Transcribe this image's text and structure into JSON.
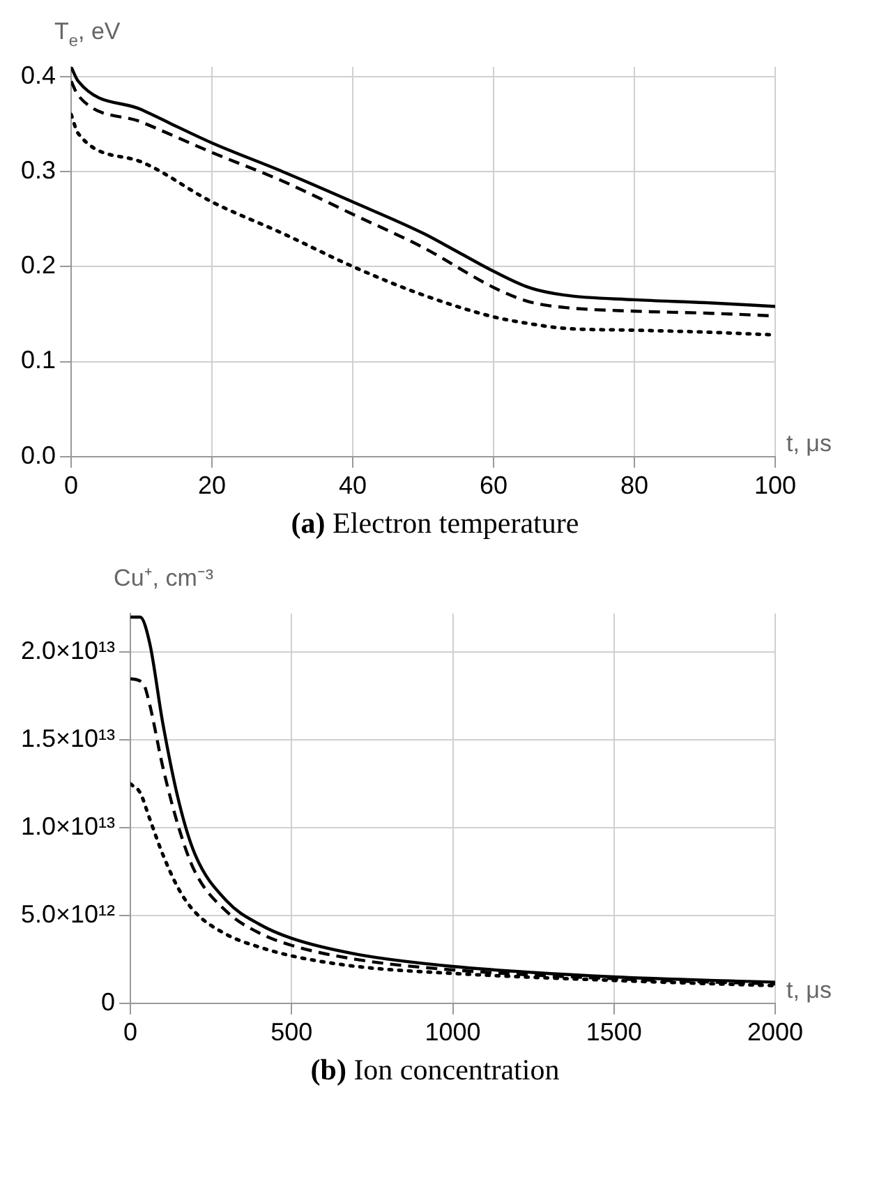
{
  "chart_data": [
    {
      "type": "line",
      "title": "(a) Electron temperature",
      "xlabel": "t, μs",
      "ylabel": "T$_{e}$, eV",
      "xlim": [
        0,
        100
      ],
      "xticks": [
        0,
        20,
        40,
        60,
        80,
        100
      ],
      "ylim": [
        0,
        0.41
      ],
      "yticks": [
        {
          "value": 0,
          "label": "0.0"
        },
        0.1,
        0.2,
        0.3,
        0.4
      ],
      "grid": true,
      "legend": false,
      "marker": "none",
      "series": [
        {
          "color": "#000000",
          "line_style": "solid",
          "x": [
            0,
            1,
            10,
            20,
            30,
            40,
            50,
            55,
            60,
            65,
            70,
            80,
            90,
            100
          ],
          "values": [
            0.41,
            0.395,
            0.365,
            0.33,
            0.3,
            0.268,
            0.235,
            0.215,
            0.195,
            0.178,
            0.17,
            0.165,
            0.162,
            0.158
          ]
        },
        {
          "color": "#000000",
          "line_style": "dashed",
          "x": [
            0,
            1,
            10,
            20,
            30,
            40,
            50,
            60,
            65,
            70,
            80,
            90,
            100
          ],
          "values": [
            0.395,
            0.38,
            0.352,
            0.32,
            0.29,
            0.255,
            0.22,
            0.178,
            0.163,
            0.157,
            0.153,
            0.151,
            0.148
          ]
        },
        {
          "color": "#000000",
          "line_style": "dotted",
          "x": [
            0,
            1,
            10,
            20,
            30,
            40,
            50,
            60,
            65,
            70,
            80,
            90,
            100
          ],
          "values": [
            0.36,
            0.34,
            0.31,
            0.268,
            0.235,
            0.2,
            0.17,
            0.147,
            0.14,
            0.135,
            0.133,
            0.131,
            0.128
          ]
        }
      ]
    },
    {
      "type": "line",
      "title": "(b) Ion concentration",
      "xlabel": "t, μs",
      "ylabel": "Cu⁺, cm⁻³",
      "xlim": [
        0,
        2000
      ],
      "xticks": [
        0,
        500,
        1000,
        1500,
        2000
      ],
      "ylim": [
        0,
        22200000000000.0
      ],
      "yticks": [
        0,
        {
          "value": 5000000000000.0,
          "label": "5.0×10¹²"
        },
        {
          "value": 10000000000000.0,
          "label": "1.0×10¹³"
        },
        {
          "value": 15000000000000.0,
          "label": "1.5×10¹³"
        },
        {
          "value": 20000000000000.0,
          "label": "2.0×10¹³"
        }
      ],
      "grid": true,
      "legend": false,
      "marker": "none",
      "series": [
        {
          "color": "#000000",
          "line_style": "solid",
          "x": [
            0,
            30,
            60,
            100,
            150,
            200,
            300,
            400,
            500,
            700,
            1000,
            1500,
            2000
          ],
          "values": [
            22000000000000.0,
            22000000000000.0,
            20500000000000.0,
            16000000000000.0,
            11500000000000.0,
            8500000000000.0,
            5800000000000.0,
            4500000000000.0,
            3700000000000.0,
            2800000000000.0,
            2100000000000.0,
            1500000000000.0,
            1200000000000.0
          ]
        },
        {
          "color": "#000000",
          "line_style": "dashed",
          "x": [
            0,
            40,
            60,
            100,
            150,
            200,
            300,
            400,
            500,
            700,
            1000,
            1500,
            2000
          ],
          "values": [
            18500000000000.0,
            18200000000000.0,
            17000000000000.0,
            13500000000000.0,
            10000000000000.0,
            7500000000000.0,
            5200000000000.0,
            4000000000000.0,
            3300000000000.0,
            2500000000000.0,
            1900000000000.0,
            1400000000000.0,
            1100000000000.0
          ]
        },
        {
          "color": "#000000",
          "line_style": "dotted",
          "x": [
            0,
            30,
            60,
            100,
            150,
            200,
            300,
            400,
            500,
            700,
            1000,
            1500,
            2000
          ],
          "values": [
            12500000000000.0,
            12000000000000.0,
            10500000000000.0,
            8500000000000.0,
            6500000000000.0,
            5200000000000.0,
            3900000000000.0,
            3200000000000.0,
            2700000000000.0,
            2100000000000.0,
            1700000000000.0,
            1300000000000.0,
            1000000000000.0
          ]
        }
      ]
    }
  ]
}
